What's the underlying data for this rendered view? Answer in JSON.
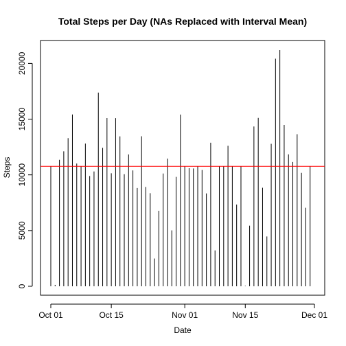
{
  "chart_data": {
    "type": "bar",
    "style": "histogram-lines",
    "title": "Total Steps per Day (NAs Replaced with Interval Mean)",
    "xlabel": "Date",
    "ylabel": "Steps",
    "x_start": "Oct 01",
    "x": [
      "2012-10-01",
      "2012-10-02",
      "2012-10-03",
      "2012-10-04",
      "2012-10-05",
      "2012-10-06",
      "2012-10-07",
      "2012-10-08",
      "2012-10-09",
      "2012-10-10",
      "2012-10-11",
      "2012-10-12",
      "2012-10-13",
      "2012-10-14",
      "2012-10-15",
      "2012-10-16",
      "2012-10-17",
      "2012-10-18",
      "2012-10-19",
      "2012-10-20",
      "2012-10-21",
      "2012-10-22",
      "2012-10-23",
      "2012-10-24",
      "2012-10-25",
      "2012-10-26",
      "2012-10-27",
      "2012-10-28",
      "2012-10-29",
      "2012-10-30",
      "2012-10-31",
      "2012-11-01",
      "2012-11-02",
      "2012-11-03",
      "2012-11-04",
      "2012-11-05",
      "2012-11-06",
      "2012-11-07",
      "2012-11-08",
      "2012-11-09",
      "2012-11-10",
      "2012-11-11",
      "2012-11-12",
      "2012-11-13",
      "2012-11-14",
      "2012-11-15",
      "2012-11-16",
      "2012-11-17",
      "2012-11-18",
      "2012-11-19",
      "2012-11-20",
      "2012-11-21",
      "2012-11-22",
      "2012-11-23",
      "2012-11-24",
      "2012-11-25",
      "2012-11-26",
      "2012-11-27",
      "2012-11-28",
      "2012-11-29",
      "2012-11-30"
    ],
    "values": [
      10766,
      126,
      11352,
      12116,
      13294,
      15420,
      11015,
      10766,
      12811,
      9900,
      10304,
      17382,
      12426,
      15098,
      10139,
      15084,
      13452,
      10056,
      11829,
      10395,
      8821,
      13460,
      8918,
      8355,
      2492,
      6778,
      10119,
      11458,
      5018,
      9819,
      15414,
      10766,
      10600,
      10571,
      10766,
      10439,
      8334,
      12883,
      3219,
      10766,
      10766,
      12608,
      10765,
      7336,
      10766,
      41,
      5441,
      14339,
      15110,
      8841,
      4472,
      12787,
      20427,
      21194,
      14478,
      11834,
      11162,
      13646,
      10183,
      7047,
      10766
    ],
    "mean_line": 10766,
    "mean_line_color": "#ff0000",
    "bar_color": "#000000",
    "ylim": [
      0,
      21194
    ],
    "y_ticks": [
      0,
      5000,
      10000,
      15000,
      20000
    ],
    "x_ticks": [
      {
        "date": "2012-10-01",
        "label": "Oct 01"
      },
      {
        "date": "2012-10-15",
        "label": "Oct 15"
      },
      {
        "date": "2012-11-01",
        "label": "Nov 01"
      },
      {
        "date": "2012-11-15",
        "label": "Nov 15"
      },
      {
        "date": "2012-12-01",
        "label": "Dec 01"
      }
    ],
    "grid": false,
    "legend": "none"
  }
}
